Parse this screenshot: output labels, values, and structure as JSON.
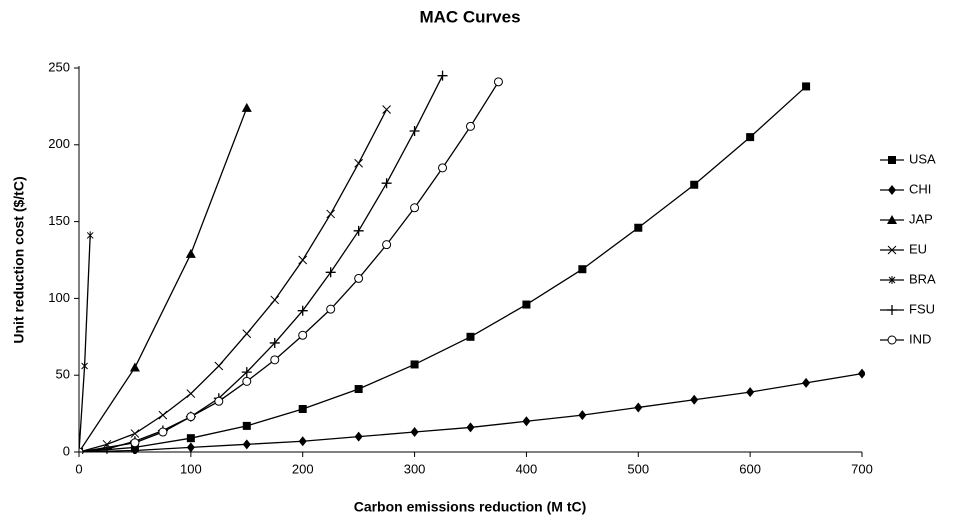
{
  "chart_data": {
    "type": "line",
    "title": "MAC Curves",
    "x_label": "Carbon emissions reduction (M tC)",
    "y_label": "Unit reduction cost ($/tC)",
    "xlim": [
      0,
      700
    ],
    "xticks": [
      0,
      100,
      200,
      300,
      400,
      500,
      600,
      700
    ],
    "ylim": [
      0,
      250
    ],
    "yticks": [
      0,
      50,
      100,
      150,
      200,
      250
    ],
    "legend": "right",
    "series": [
      {
        "name": "USA",
        "color": "#000000",
        "marker": "square",
        "x": [
          0,
          50,
          100,
          150,
          200,
          250,
          300,
          350,
          400,
          450,
          500,
          550,
          600,
          650
        ],
        "values": [
          0,
          3,
          9,
          17,
          28,
          41,
          57,
          75,
          96,
          119,
          146,
          174,
          205,
          238
        ]
      },
      {
        "name": "CHI",
        "color": "#000000",
        "marker": "diamond",
        "x": [
          0,
          50,
          100,
          150,
          200,
          250,
          300,
          350,
          400,
          450,
          500,
          550,
          600,
          650,
          700
        ],
        "values": [
          0,
          1,
          3,
          5,
          7,
          10,
          13,
          16,
          20,
          24,
          29,
          34,
          39,
          45,
          51
        ]
      },
      {
        "name": "JAP",
        "color": "#000000",
        "marker": "triangle",
        "x": [
          0,
          50,
          100,
          150
        ],
        "values": [
          0,
          55,
          129,
          224
        ]
      },
      {
        "name": "EU",
        "color": "#000000",
        "marker": "cross",
        "x": [
          0,
          25,
          50,
          75,
          100,
          125,
          150,
          175,
          200,
          225,
          250,
          275
        ],
        "values": [
          0,
          5,
          12,
          24,
          38,
          56,
          77,
          99,
          125,
          155,
          188,
          223
        ]
      },
      {
        "name": "BRA",
        "color": "#000000",
        "marker": "star",
        "x": [
          0,
          5,
          10
        ],
        "values": [
          0,
          56,
          141
        ]
      },
      {
        "name": "FSU",
        "color": "#000000",
        "marker": "plus",
        "x": [
          0,
          25,
          50,
          75,
          100,
          125,
          150,
          175,
          200,
          225,
          250,
          275,
          300,
          325
        ],
        "values": [
          0,
          2,
          7,
          14,
          23,
          35,
          52,
          71,
          92,
          117,
          144,
          175,
          209,
          245
        ]
      },
      {
        "name": "IND",
        "color": "#000000",
        "marker": "circle",
        "x": [
          0,
          50,
          75,
          100,
          125,
          150,
          175,
          200,
          225,
          250,
          275,
          300,
          325,
          350,
          375
        ],
        "values": [
          0,
          6,
          13,
          23,
          33,
          46,
          60,
          76,
          93,
          113,
          135,
          159,
          185,
          212,
          241
        ]
      }
    ]
  }
}
